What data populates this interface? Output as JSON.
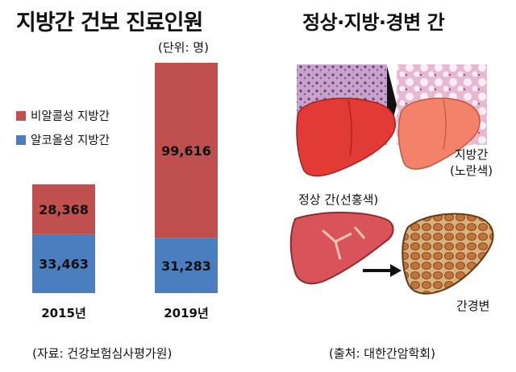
{
  "chart_data": {
    "type": "bar",
    "stacked": true,
    "title": "지방간 건보 진료인원",
    "unit_note": "(단위: 명)",
    "categories": [
      "2015년",
      "2019년"
    ],
    "series": [
      {
        "name": "알코올성 지방간",
        "color": "#4a7ebf",
        "values": [
          33463,
          31283
        ],
        "labels": [
          "33,463",
          "31,283"
        ]
      },
      {
        "name": "비알콜성 지방간",
        "color": "#c0504d",
        "values": [
          28368,
          99616
        ],
        "labels": [
          "28,368",
          "99,616"
        ]
      }
    ],
    "legend": [
      "비알콜성 지방간",
      "알코올성 지방간"
    ],
    "legend_position": "left-middle",
    "grid": false,
    "source": "(자료: 건강보험심사평가원)"
  },
  "illustration_panel": {
    "title": "정상·지방·경변 간",
    "captions": {
      "normal": "정상 간(선홍색)",
      "fatty": [
        "지방간",
        "(노란색)"
      ],
      "cirrhosis": "간경변"
    },
    "source": "(출처: 대한간암학회)"
  }
}
